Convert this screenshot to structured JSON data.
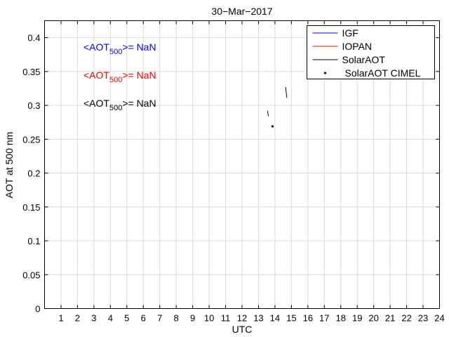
{
  "chart_data": {
    "type": "line",
    "title": "30−Mar−2017",
    "xlabel": "UTC",
    "ylabel": "AOT at 500 nm",
    "xlim": [
      0,
      24
    ],
    "ylim": [
      0,
      0.425
    ],
    "grid": true,
    "legend_position": "top-right",
    "x_ticks": [
      "1",
      "2",
      "3",
      "4",
      "5",
      "6",
      "7",
      "8",
      "9",
      "10",
      "11",
      "12",
      "13",
      "14",
      "15",
      "16",
      "17",
      "18",
      "19",
      "20",
      "21",
      "22",
      "23",
      "24"
    ],
    "y_ticks": [
      "0",
      "0.05",
      "0.1",
      "0.15",
      "0.2",
      "0.25",
      "0.3",
      "0.35",
      "0.4"
    ],
    "x_tick_values": [
      1,
      2,
      3,
      4,
      5,
      6,
      7,
      8,
      9,
      10,
      11,
      12,
      13,
      14,
      15,
      16,
      17,
      18,
      19,
      20,
      21,
      22,
      23,
      24
    ],
    "y_tick_values": [
      0,
      0.05,
      0.1,
      0.15,
      0.2,
      0.25,
      0.3,
      0.35,
      0.4
    ],
    "legend": [
      "IGF",
      "IOPAN",
      "SolarAOT",
      "SolarAOT CIMEL"
    ],
    "series": [
      {
        "name": "IGF",
        "color": "#0000ff",
        "style": "line",
        "points": []
      },
      {
        "name": "IOPAN",
        "color": "#ff0000",
        "style": "line",
        "points": []
      },
      {
        "name": "SolarAOT",
        "color": "#000000",
        "style": "line",
        "segments": [
          [
            [
              13.55,
              0.292
            ],
            [
              13.6,
              0.284
            ]
          ],
          [
            [
              14.65,
              0.327
            ],
            [
              14.72,
              0.311
            ]
          ]
        ]
      },
      {
        "name": "SolarAOT CIMEL",
        "color": "#000000",
        "style": "marker",
        "points": [
          [
            13.85,
            0.269
          ]
        ]
      }
    ],
    "annotations": [
      {
        "prefix": "<AOT",
        "subscript": "500",
        "suffix": ">=  NaN",
        "color": "#0000ff"
      },
      {
        "prefix": "<AOT",
        "subscript": "500",
        "suffix": ">=  NaN",
        "color": "#ff0000"
      },
      {
        "prefix": "<AOT",
        "subscript": "500",
        "suffix": ">=  NaN",
        "color": "#000000"
      }
    ]
  }
}
